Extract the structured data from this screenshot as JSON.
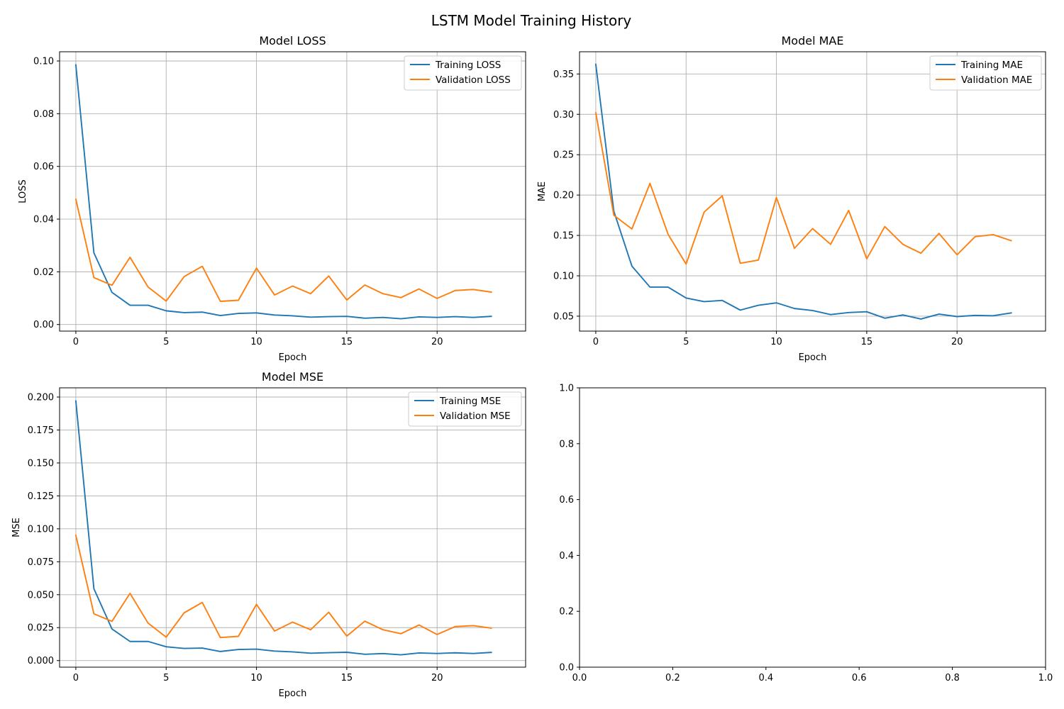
{
  "figure": {
    "title": "LSTM Model Training History"
  },
  "colors": {
    "training": "#1f77b4",
    "validation": "#ff7f0e",
    "grid": "#b0b0b0",
    "axis": "#000000"
  },
  "chart_data": [
    {
      "type": "line",
      "title": "Model LOSS",
      "xlabel": "Epoch",
      "ylabel": "LOSS",
      "xlim": [
        -0.9,
        24.9
      ],
      "ylim": [
        -0.0025,
        0.1035
      ],
      "xticks": [
        0,
        5,
        10,
        15,
        20
      ],
      "yticks": [
        0.0,
        0.02,
        0.04,
        0.06,
        0.08,
        0.1
      ],
      "ytick_labels": [
        "0.00",
        "0.02",
        "0.04",
        "0.06",
        "0.08",
        "0.10"
      ],
      "grid": true,
      "legend_position": "top-right",
      "x": [
        0,
        1,
        2,
        3,
        4,
        5,
        6,
        7,
        8,
        9,
        10,
        11,
        12,
        13,
        14,
        15,
        16,
        17,
        18,
        19,
        20,
        21,
        22,
        23
      ],
      "series": [
        {
          "name": "Training LOSS",
          "color_key": "training",
          "values": [
            0.0985,
            0.0272,
            0.0122,
            0.0073,
            0.0073,
            0.0052,
            0.0045,
            0.0047,
            0.0034,
            0.0042,
            0.0044,
            0.0036,
            0.0033,
            0.0028,
            0.003,
            0.0031,
            0.0024,
            0.0027,
            0.0022,
            0.0029,
            0.0027,
            0.003,
            0.0027,
            0.0031
          ]
        },
        {
          "name": "Validation LOSS",
          "color_key": "validation",
          "values": [
            0.0475,
            0.0178,
            0.0149,
            0.0255,
            0.0142,
            0.0089,
            0.0182,
            0.0221,
            0.0088,
            0.0092,
            0.0214,
            0.0112,
            0.0146,
            0.0117,
            0.0184,
            0.0093,
            0.015,
            0.0117,
            0.0102,
            0.0135,
            0.0099,
            0.0129,
            0.0133,
            0.0123
          ]
        }
      ]
    },
    {
      "type": "line",
      "title": "Model MAE",
      "xlabel": "Epoch",
      "ylabel": "MAE",
      "xlim": [
        -0.9,
        24.9
      ],
      "ylim": [
        0.0315,
        0.3775
      ],
      "xticks": [
        0,
        5,
        10,
        15,
        20
      ],
      "yticks": [
        0.05,
        0.1,
        0.15,
        0.2,
        0.25,
        0.3,
        0.35
      ],
      "ytick_labels": [
        "0.05",
        "0.10",
        "0.15",
        "0.20",
        "0.25",
        "0.30",
        "0.35"
      ],
      "grid": true,
      "legend_position": "top-right",
      "x": [
        0,
        1,
        2,
        3,
        4,
        5,
        6,
        7,
        8,
        9,
        10,
        11,
        12,
        13,
        14,
        15,
        16,
        17,
        18,
        19,
        20,
        21,
        22,
        23
      ],
      "series": [
        {
          "name": "Training MAE",
          "color_key": "training",
          "values": [
            0.362,
            0.18,
            0.112,
            0.086,
            0.086,
            0.0725,
            0.068,
            0.0695,
            0.0575,
            0.0635,
            0.0665,
            0.0595,
            0.057,
            0.052,
            0.0545,
            0.0555,
            0.0475,
            0.0515,
            0.0465,
            0.0525,
            0.0495,
            0.051,
            0.0505,
            0.054
          ]
        },
        {
          "name": "Validation MAE",
          "color_key": "validation",
          "values": [
            0.302,
            0.175,
            0.158,
            0.2145,
            0.1515,
            0.1145,
            0.179,
            0.199,
            0.1155,
            0.1195,
            0.197,
            0.134,
            0.1585,
            0.139,
            0.181,
            0.121,
            0.161,
            0.139,
            0.128,
            0.1525,
            0.126,
            0.1485,
            0.151,
            0.1435
          ]
        }
      ]
    },
    {
      "type": "line",
      "title": "Model MSE",
      "xlabel": "Epoch",
      "ylabel": "MSE",
      "xlim": [
        -0.9,
        24.9
      ],
      "ylim": [
        -0.005,
        0.207
      ],
      "xticks": [
        0,
        5,
        10,
        15,
        20
      ],
      "yticks": [
        0.0,
        0.025,
        0.05,
        0.075,
        0.1,
        0.125,
        0.15,
        0.175,
        0.2
      ],
      "ytick_labels": [
        "0.000",
        "0.025",
        "0.050",
        "0.075",
        "0.100",
        "0.125",
        "0.150",
        "0.175",
        "0.200"
      ],
      "grid": true,
      "legend_position": "top-right",
      "x": [
        0,
        1,
        2,
        3,
        4,
        5,
        6,
        7,
        8,
        9,
        10,
        11,
        12,
        13,
        14,
        15,
        16,
        17,
        18,
        19,
        20,
        21,
        22,
        23
      ],
      "series": [
        {
          "name": "Training MSE",
          "color_key": "training",
          "values": [
            0.197,
            0.0545,
            0.024,
            0.0145,
            0.0145,
            0.0105,
            0.0092,
            0.0095,
            0.0069,
            0.0084,
            0.0087,
            0.0072,
            0.0066,
            0.0056,
            0.006,
            0.0063,
            0.0048,
            0.0053,
            0.0044,
            0.0058,
            0.0054,
            0.0059,
            0.0054,
            0.0062
          ]
        },
        {
          "name": "Validation MSE",
          "color_key": "validation",
          "values": [
            0.095,
            0.0355,
            0.0298,
            0.051,
            0.0284,
            0.0178,
            0.0363,
            0.0441,
            0.0175,
            0.0184,
            0.0427,
            0.0224,
            0.0292,
            0.0234,
            0.0367,
            0.0186,
            0.0299,
            0.0234,
            0.0204,
            0.027,
            0.0198,
            0.0258,
            0.0265,
            0.0246
          ]
        }
      ]
    },
    {
      "type": "line",
      "title": "",
      "xlabel": "",
      "ylabel": "",
      "xlim": [
        0,
        1
      ],
      "ylim": [
        0,
        1
      ],
      "xticks": [
        0.0,
        0.2,
        0.4,
        0.6,
        0.8,
        1.0
      ],
      "xtick_labels": [
        "0.0",
        "0.2",
        "0.4",
        "0.6",
        "0.8",
        "1.0"
      ],
      "yticks": [
        0.0,
        0.2,
        0.4,
        0.6,
        0.8,
        1.0
      ],
      "ytick_labels": [
        "0.0",
        "0.2",
        "0.4",
        "0.6",
        "0.8",
        "1.0"
      ],
      "grid": false,
      "x": [],
      "series": []
    }
  ]
}
